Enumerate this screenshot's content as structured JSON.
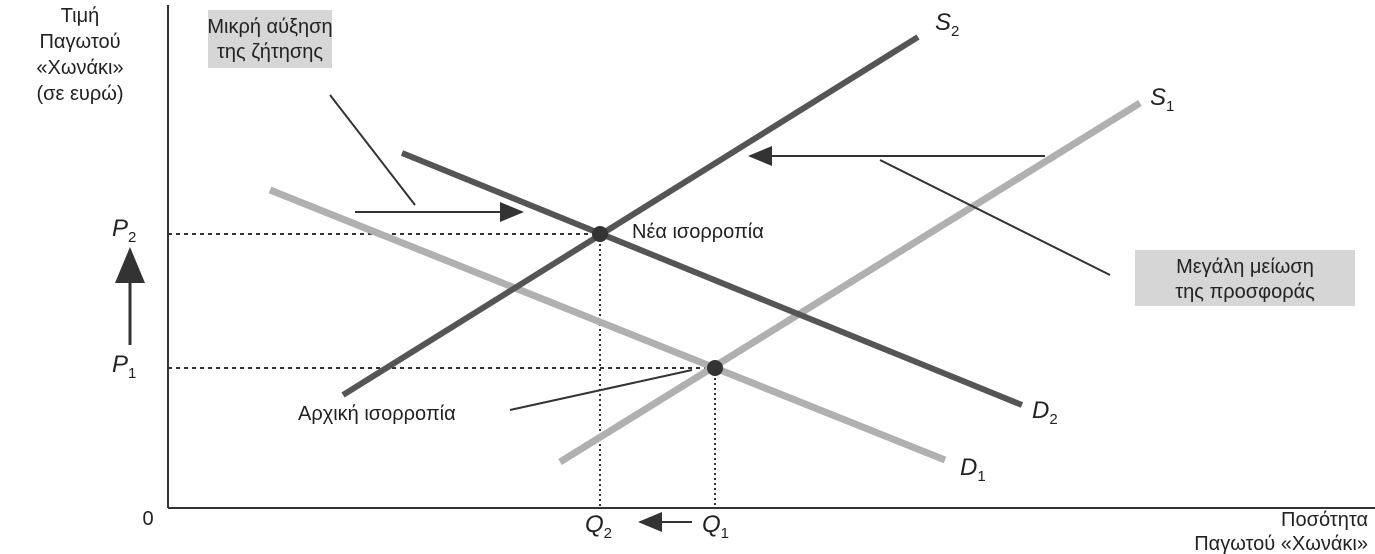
{
  "y_axis_label": [
    "Τιμή",
    "Παγωτού",
    "«Χωνάκι»",
    "(σε ευρώ)"
  ],
  "origin": "0",
  "x_axis_label": [
    "Ποσότητα",
    "Παγωτού «Χωνάκι»"
  ],
  "demand_note": [
    "Μικρή αύξηση",
    "της ζήτησης"
  ],
  "supply_note": [
    "Μεγάλη μείωση",
    "της προσφοράς"
  ],
  "new_equilibrium": "Νέα ισορροπία",
  "initial_equilibrium": "Αρχική ισορροπία",
  "curves": {
    "S2": {
      "letter": "S",
      "sub": "2"
    },
    "S1": {
      "letter": "S",
      "sub": "1"
    },
    "D2": {
      "letter": "D",
      "sub": "2"
    },
    "D1": {
      "letter": "D",
      "sub": "1"
    }
  },
  "prices": {
    "P2": {
      "letter": "P",
      "sub": "2"
    },
    "P1": {
      "letter": "P",
      "sub": "1"
    }
  },
  "quantities": {
    "Q2": {
      "letter": "Q",
      "sub": "2"
    },
    "Q1": {
      "letter": "Q",
      "sub": "1"
    }
  }
}
